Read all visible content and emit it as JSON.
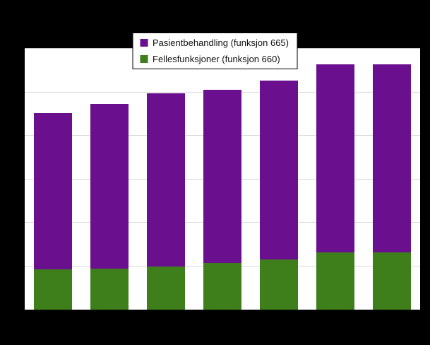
{
  "page": {
    "background_color": "#000000",
    "plot_background_color": "#ffffff",
    "gridline_color": "#d9d9d9"
  },
  "legend": {
    "items": [
      {
        "label": "Pasientbehandling (funksjon 665)",
        "color": "#6a0f8e"
      },
      {
        "label": "Fellesfunksjoner (funksjon 660)",
        "color": "#3e7f1c"
      }
    ]
  },
  "chart_data": {
    "type": "bar",
    "stacked": true,
    "title": "",
    "xlabel": "",
    "ylabel": "",
    "categories": [
      "",
      "",
      "",
      "",
      "",
      "",
      ""
    ],
    "series": [
      {
        "name": "Fellesfunksjoner (funksjon 660)",
        "color": "#3e7f1c",
        "values": [
          18.5,
          19,
          20,
          21.5,
          23,
          26.5,
          26.5
        ]
      },
      {
        "name": "Pasientbehandling (funksjon 665)",
        "color": "#6a0f8e",
        "values": [
          72,
          75.5,
          79.5,
          79.5,
          82.5,
          86.5,
          86.5
        ]
      }
    ],
    "ylim": [
      0,
      120
    ],
    "ytick_step": 20,
    "grid": "horizontal",
    "legend_position": "top-center"
  }
}
